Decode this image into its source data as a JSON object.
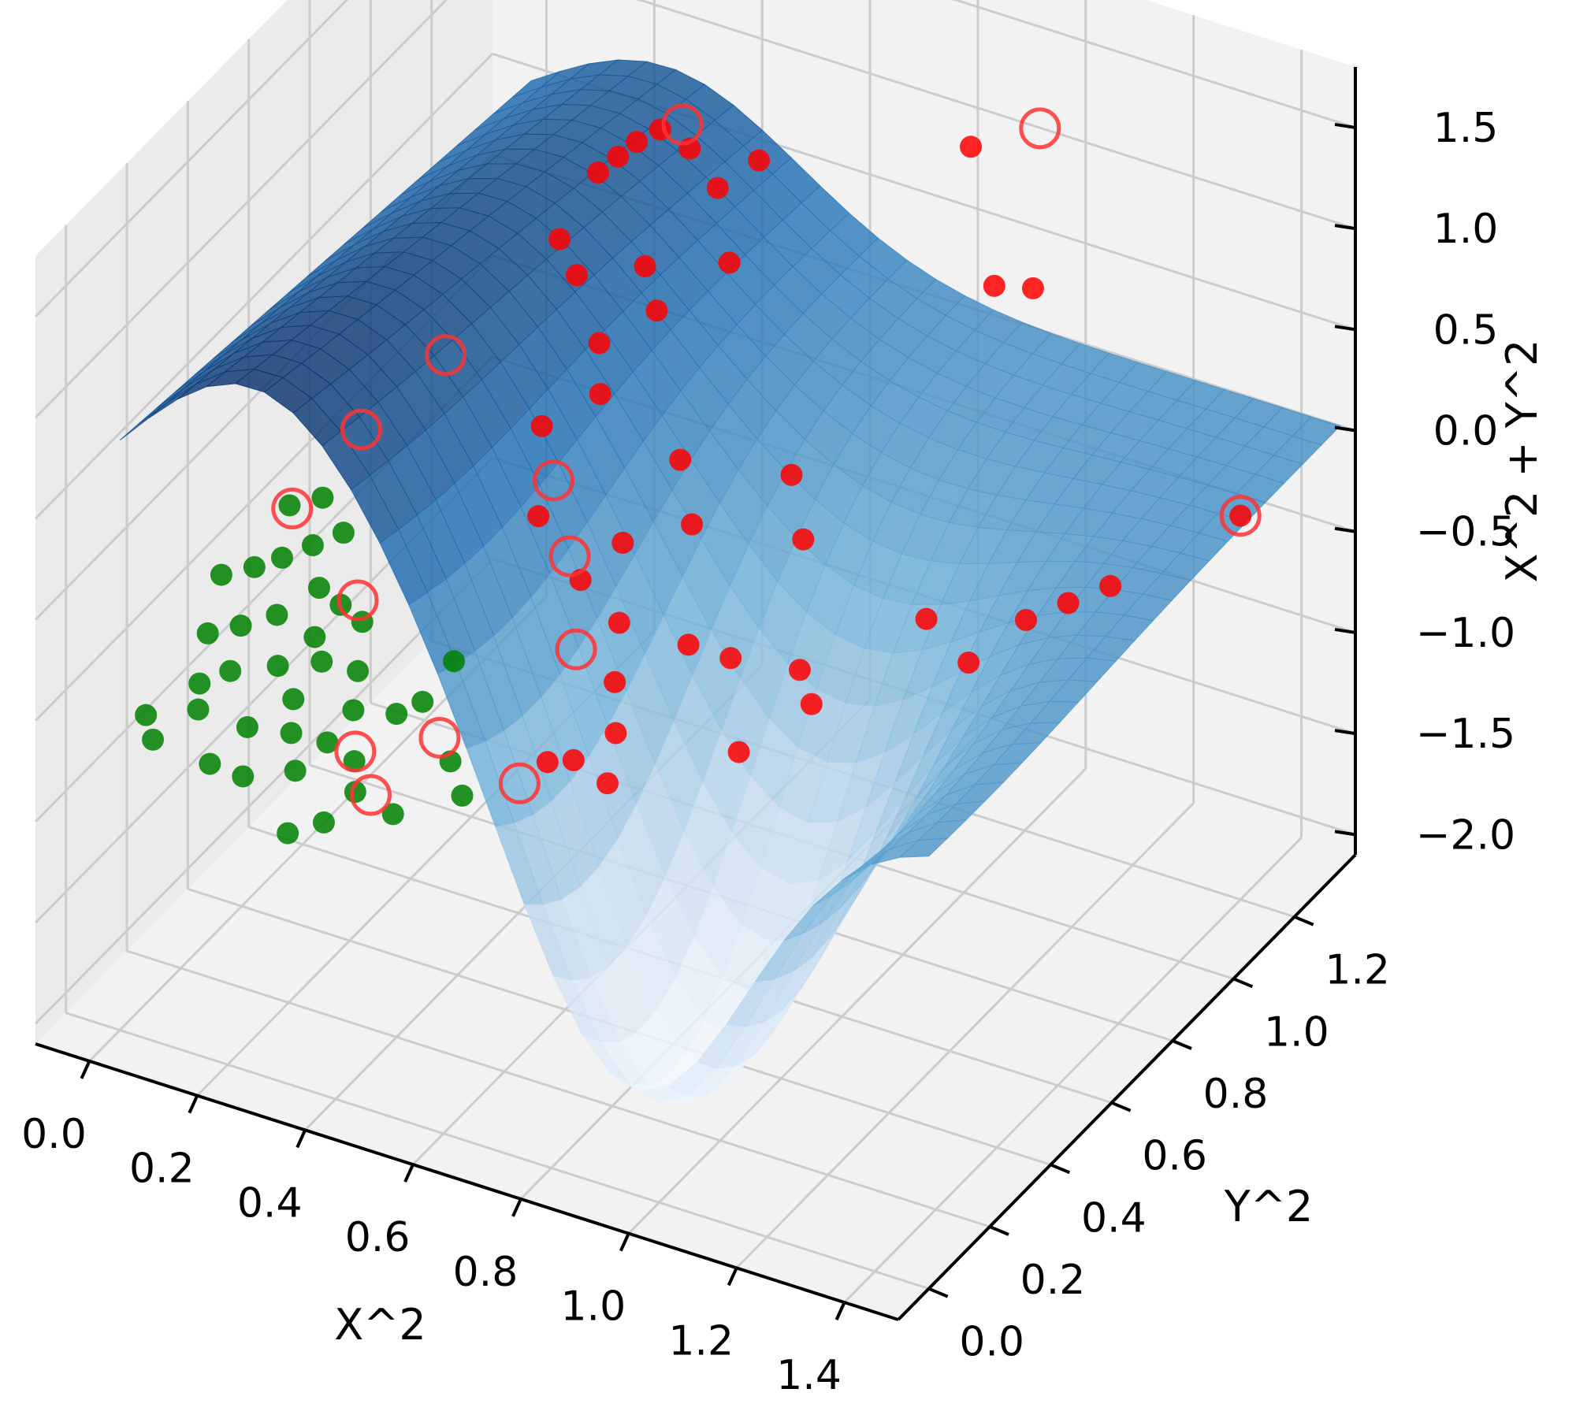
{
  "chart_data": {
    "type": "scatter",
    "projection": "3d",
    "xlabel": "X^2",
    "ylabel": "Y^2",
    "zlabel": "X^2 + Y^2",
    "xlim": [
      -0.1,
      1.5
    ],
    "ylim": [
      -0.1,
      1.4
    ],
    "zlim": [
      -2.1,
      1.8
    ],
    "x_ticks": [
      "0.0",
      "0.2",
      "0.4",
      "0.6",
      "0.8",
      "1.0",
      "1.2",
      "1.4"
    ],
    "y_ticks": [
      "0.0",
      "0.2",
      "0.4",
      "0.6",
      "0.8",
      "1.0",
      "1.2"
    ],
    "z_ticks": [
      "−2.0",
      "−1.5",
      "−1.0",
      "−0.5",
      "0.0",
      "0.5",
      "1.0",
      "1.5"
    ],
    "grid": true,
    "pane_color": "#f2f2f2",
    "surface": {
      "description_colormap": "Blues",
      "colors": [
        "#f7fbff",
        "#c6dbef",
        "#6baed6",
        "#2171b5",
        "#08306b"
      ]
    },
    "series": [
      {
        "color": "#008000",
        "points": [
          [
            0.02,
            0.05,
            -0.6
          ],
          [
            0.05,
            0.02,
            -0.65
          ],
          [
            0.1,
            0.08,
            -0.55
          ],
          [
            0.15,
            0.03,
            -0.7
          ],
          [
            0.08,
            0.12,
            -0.5
          ],
          [
            0.12,
            0.15,
            -0.45
          ],
          [
            0.18,
            0.1,
            -0.6
          ],
          [
            0.2,
            0.05,
            -0.75
          ],
          [
            0.25,
            0.12,
            -0.6
          ],
          [
            0.22,
            0.18,
            -0.55
          ],
          [
            0.28,
            0.08,
            -0.7
          ],
          [
            0.3,
            0.15,
            -0.65
          ],
          [
            0.05,
            0.2,
            -0.4
          ],
          [
            0.1,
            0.22,
            -0.35
          ],
          [
            0.15,
            0.25,
            -0.3
          ],
          [
            0.18,
            0.2,
            -0.45
          ],
          [
            0.22,
            0.25,
            -0.35
          ],
          [
            0.25,
            0.22,
            -0.4
          ],
          [
            0.03,
            0.28,
            -0.25
          ],
          [
            0.08,
            0.3,
            -0.2
          ],
          [
            0.12,
            0.32,
            -0.15
          ],
          [
            0.16,
            0.35,
            -0.1
          ],
          [
            0.2,
            0.3,
            -0.2
          ],
          [
            0.24,
            0.3,
            -0.25
          ],
          [
            0.28,
            0.3,
            -0.3
          ],
          [
            0.3,
            0.25,
            -0.45
          ],
          [
            0.32,
            0.2,
            -0.55
          ],
          [
            0.35,
            0.15,
            -0.7
          ],
          [
            0.38,
            0.1,
            -0.75
          ],
          [
            0.4,
            0.2,
            -0.5
          ],
          [
            0.42,
            0.25,
            -0.5
          ],
          [
            0.45,
            0.1,
            -0.8
          ],
          [
            0.1,
            0.38,
            0.0
          ],
          [
            0.15,
            0.4,
            0.05
          ],
          [
            0.2,
            0.38,
            -0.05
          ],
          [
            0.35,
            0.05,
            -0.85
          ],
          [
            0.3,
            0.02,
            -0.9
          ],
          [
            0.45,
            0.3,
            -0.35
          ],
          [
            0.5,
            0.2,
            -0.65
          ],
          [
            0.55,
            0.15,
            -0.7
          ]
        ]
      },
      {
        "color": "#ff0000",
        "points": [
          [
            0.55,
            0.8,
            1.6
          ],
          [
            0.5,
            0.75,
            1.5
          ],
          [
            0.48,
            0.72,
            1.45
          ],
          [
            0.45,
            0.9,
            1.3
          ],
          [
            0.52,
            0.95,
            1.25
          ],
          [
            0.6,
            0.9,
            1.2
          ],
          [
            0.62,
            1.0,
            1.2
          ],
          [
            0.42,
            0.7,
            1.1
          ],
          [
            0.48,
            0.65,
            1.05
          ],
          [
            0.55,
            0.75,
            1.0
          ],
          [
            0.65,
            0.85,
            0.95
          ],
          [
            0.6,
            0.7,
            0.9
          ],
          [
            0.55,
            0.6,
            0.85
          ],
          [
            0.58,
            0.55,
            0.7
          ],
          [
            0.5,
            0.5,
            0.55
          ],
          [
            0.9,
            1.2,
            1.2
          ],
          [
            1.0,
            1.1,
            0.75
          ],
          [
            1.1,
            1.05,
            0.9
          ],
          [
            0.7,
            0.6,
            0.4
          ],
          [
            0.75,
            0.55,
            0.2
          ],
          [
            0.85,
            0.7,
            0.3
          ],
          [
            0.9,
            0.65,
            0.1
          ],
          [
            0.65,
            0.5,
            0.1
          ],
          [
            0.6,
            0.45,
            -0.05
          ],
          [
            0.7,
            0.4,
            -0.1
          ],
          [
            0.8,
            0.45,
            -0.2
          ],
          [
            0.85,
            0.5,
            -0.3
          ],
          [
            0.95,
            0.55,
            -0.35
          ],
          [
            1.0,
            0.5,
            -0.4
          ],
          [
            1.1,
            0.7,
            -0.2
          ],
          [
            1.2,
            0.85,
            -0.35
          ],
          [
            1.25,
            0.9,
            -0.3
          ],
          [
            1.3,
            0.95,
            -0.25
          ],
          [
            1.15,
            0.75,
            -0.45
          ],
          [
            0.95,
            0.35,
            -0.45
          ],
          [
            0.75,
            0.3,
            -0.45
          ],
          [
            0.7,
            0.25,
            -0.55
          ],
          [
            0.78,
            0.22,
            -0.55
          ],
          [
            0.72,
            0.35,
            -0.3
          ],
          [
            0.68,
            0.2,
            -0.5
          ],
          [
            1.4,
            1.2,
            -0.2
          ],
          [
            0.55,
            0.4,
            0.3
          ]
        ]
      }
    ],
    "support_vectors": {
      "color": "#ff3333",
      "points": [
        [
          0.58,
          0.82,
          1.62
        ],
        [
          1.0,
          1.25,
          1.3
        ],
        [
          0.35,
          0.45,
          0.85
        ],
        [
          0.25,
          0.35,
          0.55
        ],
        [
          0.15,
          0.3,
          0.15
        ],
        [
          0.3,
          0.25,
          -0.1
        ],
        [
          0.55,
          0.45,
          0.4
        ],
        [
          0.58,
          0.45,
          0.05
        ],
        [
          0.62,
          0.4,
          -0.3
        ],
        [
          0.38,
          0.1,
          -0.55
        ],
        [
          0.42,
          0.08,
          -0.7
        ],
        [
          0.48,
          0.2,
          -0.55
        ],
        [
          0.6,
          0.25,
          -0.75
        ],
        [
          1.4,
          1.2,
          -0.2
        ]
      ]
    }
  }
}
